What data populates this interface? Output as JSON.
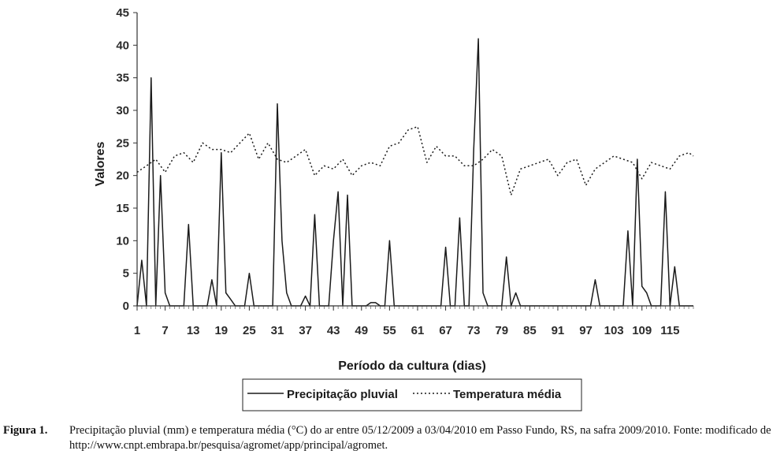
{
  "chart_data": {
    "type": "line",
    "xlabel": "Período da cultura (dias)",
    "ylabel": "Valores",
    "xlim": [
      1,
      120
    ],
    "ylim": [
      0,
      45
    ],
    "x_ticks": [
      1,
      7,
      13,
      19,
      25,
      31,
      37,
      43,
      49,
      55,
      61,
      67,
      73,
      79,
      85,
      91,
      97,
      103,
      109,
      115
    ],
    "y_ticks": [
      0,
      5,
      10,
      15,
      20,
      25,
      30,
      35,
      40,
      45
    ],
    "legend_position": "bottom",
    "series": [
      {
        "name": "Precipitação pluvial",
        "style": "solid",
        "color": "#1a1a1a",
        "x": [
          1,
          2,
          3,
          4,
          5,
          6,
          7,
          8,
          9,
          10,
          11,
          12,
          13,
          14,
          15,
          16,
          17,
          18,
          19,
          20,
          21,
          22,
          23,
          24,
          25,
          26,
          27,
          28,
          29,
          30,
          31,
          32,
          33,
          34,
          35,
          36,
          37,
          38,
          39,
          40,
          41,
          42,
          43,
          44,
          45,
          46,
          47,
          48,
          49,
          50,
          51,
          52,
          53,
          54,
          55,
          56,
          57,
          58,
          59,
          60,
          61,
          62,
          63,
          64,
          65,
          66,
          67,
          68,
          69,
          70,
          71,
          72,
          73,
          74,
          75,
          76,
          77,
          78,
          79,
          80,
          81,
          82,
          83,
          84,
          85,
          86,
          87,
          88,
          89,
          90,
          91,
          92,
          93,
          94,
          95,
          96,
          97,
          98,
          99,
          100,
          101,
          102,
          103,
          104,
          105,
          106,
          107,
          108,
          109,
          110,
          111,
          112,
          113,
          114,
          115,
          116,
          117,
          118,
          119,
          120
        ],
        "values": [
          0,
          7,
          0,
          35,
          0,
          20,
          2,
          0,
          0,
          0,
          0,
          12.5,
          0,
          0,
          0,
          0,
          4,
          0,
          23.5,
          2,
          1,
          0,
          0,
          0,
          5,
          0,
          0,
          0,
          0,
          0,
          31,
          10,
          2,
          0,
          0,
          0,
          1.5,
          0,
          14,
          0,
          0,
          0,
          10,
          17.5,
          0,
          17,
          0,
          0,
          0,
          0,
          0.5,
          0.5,
          0,
          0,
          10,
          0,
          0,
          0,
          0,
          0,
          0,
          0,
          0,
          0,
          0,
          0,
          9,
          0,
          0,
          13.5,
          0,
          0,
          24,
          41,
          2,
          0,
          0,
          0,
          0,
          7.5,
          0,
          2,
          0,
          0,
          0,
          0,
          0,
          0,
          0,
          0,
          0,
          0,
          0,
          0,
          0,
          0,
          0,
          0,
          4,
          0,
          0,
          0,
          0,
          0,
          0,
          11.5,
          0,
          22.5,
          3,
          2,
          0,
          0,
          0,
          17.5,
          0,
          6,
          0,
          0,
          0,
          0
        ]
      },
      {
        "name": "Temperatura média",
        "style": "dotted",
        "color": "#1a1a1a",
        "x": [
          1,
          3,
          5,
          7,
          9,
          11,
          13,
          15,
          17,
          19,
          21,
          23,
          25,
          27,
          29,
          31,
          33,
          35,
          37,
          39,
          41,
          43,
          45,
          47,
          49,
          51,
          53,
          55,
          57,
          59,
          61,
          63,
          65,
          67,
          69,
          71,
          73,
          75,
          77,
          79,
          81,
          83,
          85,
          87,
          89,
          91,
          93,
          95,
          97,
          99,
          101,
          103,
          105,
          107,
          109,
          111,
          113,
          115,
          117,
          119,
          120
        ],
        "values": [
          20.5,
          21.5,
          22.5,
          20.5,
          23,
          23.5,
          22,
          25,
          24,
          24,
          23.5,
          25,
          26.5,
          22.5,
          25,
          22.5,
          22,
          23,
          24,
          20,
          21.5,
          21,
          22.5,
          20,
          21.5,
          22,
          21.5,
          24.5,
          25,
          27,
          27.5,
          22,
          24.5,
          23,
          23,
          21.5,
          21.5,
          22.5,
          24,
          23,
          17,
          21,
          21.5,
          22,
          22.5,
          20,
          22,
          22.5,
          18.5,
          21,
          22,
          23,
          22.5,
          22,
          19.5,
          22,
          21.5,
          21,
          23,
          23.5,
          23
        ]
      }
    ]
  },
  "caption": {
    "label": "Figura 1.",
    "text": "Precipitação pluvial (mm) e temperatura média (°C) do ar entre 05/12/2009 a 03/04/2010 em Passo Fundo, RS, na safra 2009/2010. Fonte: modificado de http://www.cnpt.embrapa.br/pesquisa/agromet/app/principal/agromet."
  }
}
